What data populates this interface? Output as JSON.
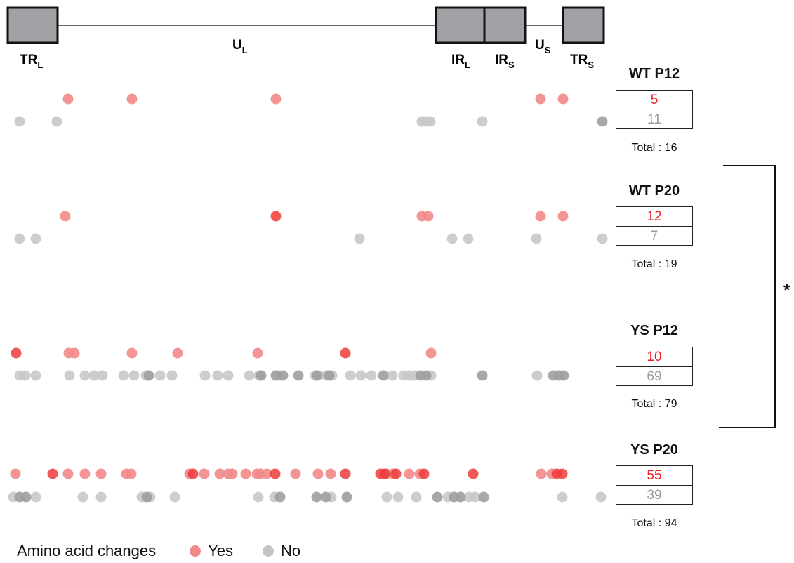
{
  "genome": {
    "regions": [
      {
        "id": "TR",
        "sub": "L"
      },
      {
        "id": "U",
        "sub": "L"
      },
      {
        "id": "IR",
        "sub": "L"
      },
      {
        "id": "IR",
        "sub": "S"
      },
      {
        "id": "U",
        "sub": "S"
      },
      {
        "id": "TR",
        "sub": "S"
      }
    ]
  },
  "samples": [
    {
      "title": "WT P12",
      "yes": "5",
      "no": "11",
      "total_label": "Total : ",
      "total": "16"
    },
    {
      "title": "WT P20",
      "yes": "12",
      "no": "7",
      "total_label": "Total : ",
      "total": "19"
    },
    {
      "title": "YS P12",
      "yes": "10",
      "no": "69",
      "total_label": "Total : ",
      "total": "79"
    },
    {
      "title": "YS P20",
      "yes": "55",
      "no": "39",
      "total_label": "Total : ",
      "total": "94"
    }
  ],
  "significance": "*",
  "legend": {
    "title": "Amino acid changes",
    "yes_label": "Yes",
    "no_label": "No",
    "yes_color": "#f28a8a",
    "no_color": "#c4c4c4"
  },
  "colors": {
    "yes": "#f28a8a",
    "no": "#c8c8c8",
    "box_fill": "#a1a1a5",
    "count_yes": "#ee1c25",
    "count_no": "#9a9a9a"
  }
}
